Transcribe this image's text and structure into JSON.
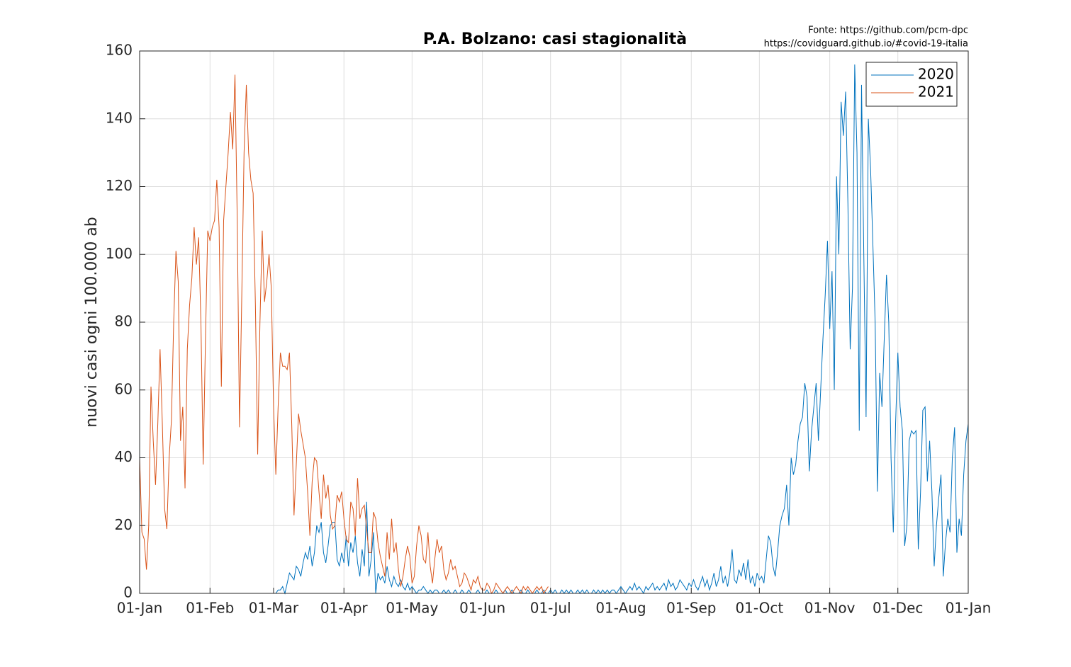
{
  "chart_data": {
    "type": "line",
    "title": "P.A. Bolzano: casi stagionalità",
    "sources": [
      "Fonte: https://github.com/pcm-dpc",
      "https://covidguard.github.io/#covid-19-italia"
    ],
    "ylabel": "nuovi casi ogni 100.000 ab",
    "xlim": [
      0,
      365
    ],
    "ylim": [
      0,
      160
    ],
    "xticks": [
      {
        "value": 0,
        "label": "01-Jan"
      },
      {
        "value": 31,
        "label": "01-Feb"
      },
      {
        "value": 59,
        "label": "01-Mar"
      },
      {
        "value": 90,
        "label": "01-Apr"
      },
      {
        "value": 120,
        "label": "01-May"
      },
      {
        "value": 151,
        "label": "01-Jun"
      },
      {
        "value": 181,
        "label": "01-Jul"
      },
      {
        "value": 212,
        "label": "01-Aug"
      },
      {
        "value": 243,
        "label": "01-Sep"
      },
      {
        "value": 273,
        "label": "01-Oct"
      },
      {
        "value": 304,
        "label": "01-Nov"
      },
      {
        "value": 334,
        "label": "01-Dec"
      },
      {
        "value": 365,
        "label": "01-Jan"
      }
    ],
    "yticks": [
      0,
      20,
      40,
      60,
      80,
      100,
      120,
      140,
      160
    ],
    "grid": true,
    "legend": "top-right",
    "series": [
      {
        "name": "2020",
        "color": "#0072BD",
        "x": [
          55,
          56,
          57,
          58,
          59,
          60,
          61,
          62,
          63,
          64,
          65,
          66,
          67,
          68,
          69,
          70,
          71,
          72,
          73,
          74,
          75,
          76,
          77,
          78,
          79,
          80,
          81,
          82,
          83,
          84,
          85,
          86,
          87,
          88,
          89,
          90,
          91,
          92,
          93,
          94,
          95,
          96,
          97,
          98,
          99,
          100,
          101,
          102,
          103,
          104,
          105,
          106,
          107,
          108,
          109,
          110,
          111,
          112,
          113,
          114,
          115,
          116,
          117,
          118,
          119,
          120,
          121,
          122,
          123,
          124,
          125,
          126,
          127,
          128,
          129,
          130,
          131,
          132,
          133,
          134,
          135,
          136,
          137,
          138,
          139,
          140,
          141,
          142,
          143,
          144,
          145,
          146,
          147,
          148,
          149,
          150,
          151,
          152,
          153,
          154,
          155,
          156,
          157,
          158,
          159,
          160,
          161,
          162,
          163,
          164,
          165,
          166,
          167,
          168,
          169,
          170,
          171,
          172,
          173,
          174,
          175,
          176,
          177,
          178,
          179,
          180,
          181,
          182,
          183,
          184,
          185,
          186,
          187,
          188,
          189,
          190,
          191,
          192,
          193,
          194,
          195,
          196,
          197,
          198,
          199,
          200,
          201,
          202,
          203,
          204,
          205,
          206,
          207,
          208,
          209,
          210,
          211,
          212,
          213,
          214,
          215,
          216,
          217,
          218,
          219,
          220,
          221,
          222,
          223,
          224,
          225,
          226,
          227,
          228,
          229,
          230,
          231,
          232,
          233,
          234,
          235,
          236,
          237,
          238,
          239,
          240,
          241,
          242,
          243,
          244,
          245,
          246,
          247,
          248,
          249,
          250,
          251,
          252,
          253,
          254,
          255,
          256,
          257,
          258,
          259,
          260,
          261,
          262,
          263,
          264,
          265,
          266,
          267,
          268,
          269,
          270,
          271,
          272,
          273,
          274,
          275,
          276,
          277,
          278,
          279,
          280,
          281,
          282,
          283,
          284,
          285,
          286,
          287,
          288,
          289,
          290,
          291,
          292,
          293,
          294,
          295,
          296,
          297,
          298,
          299,
          300,
          301,
          302,
          303,
          304,
          305,
          306,
          307,
          308,
          309,
          310,
          311,
          312,
          313,
          314,
          315,
          316,
          317,
          318,
          319,
          320,
          321,
          322,
          323,
          324,
          325,
          326,
          327,
          328,
          329,
          330,
          331,
          332,
          333,
          334,
          335,
          336,
          337,
          338,
          339,
          340,
          341,
          342,
          343,
          344,
          345,
          346,
          347,
          348,
          349,
          350,
          351,
          352,
          353,
          354,
          355,
          356,
          357,
          358,
          359,
          360,
          361,
          362,
          363,
          364,
          365
        ],
        "values": [
          0,
          0,
          0,
          0,
          0,
          0,
          1,
          1,
          2,
          0,
          3,
          6,
          5,
          4,
          8,
          7,
          5,
          9,
          12,
          10,
          14,
          8,
          12,
          20,
          18,
          21,
          12,
          9,
          14,
          20,
          21,
          21,
          10,
          8,
          12,
          9,
          17,
          8,
          15,
          12,
          17,
          9,
          5,
          13,
          8,
          27,
          5,
          10,
          18,
          0,
          6,
          4,
          5,
          3,
          8,
          4,
          2,
          5,
          3,
          2,
          4,
          2,
          1,
          3,
          1,
          2,
          1,
          0,
          1,
          1,
          2,
          1,
          0,
          1,
          0,
          1,
          1,
          0,
          0,
          1,
          0,
          1,
          0,
          0,
          1,
          0,
          0,
          1,
          0,
          0,
          1,
          0,
          0,
          0,
          1,
          0,
          0,
          0,
          1,
          0,
          0,
          0,
          1,
          0,
          0,
          0,
          1,
          0,
          0,
          1,
          0,
          0,
          0,
          1,
          0,
          0,
          1,
          0,
          0,
          0,
          1,
          0,
          0,
          1,
          0,
          0,
          1,
          0,
          1,
          0,
          0,
          1,
          0,
          1,
          0,
          1,
          0,
          0,
          1,
          0,
          1,
          0,
          1,
          0,
          0,
          1,
          0,
          1,
          0,
          1,
          0,
          1,
          0,
          1,
          1,
          0,
          1,
          2,
          1,
          0,
          1,
          2,
          1,
          3,
          1,
          2,
          1,
          0,
          2,
          1,
          2,
          3,
          1,
          2,
          1,
          2,
          3,
          1,
          4,
          2,
          3,
          1,
          2,
          4,
          3,
          2,
          1,
          3,
          2,
          4,
          2,
          1,
          3,
          5,
          2,
          4,
          1,
          3,
          6,
          2,
          4,
          8,
          3,
          5,
          2,
          6,
          13,
          4,
          3,
          7,
          5,
          9,
          4,
          10,
          3,
          5,
          2,
          6,
          4,
          5,
          3,
          10,
          17,
          15,
          8,
          5,
          12,
          20,
          23,
          25,
          32,
          20,
          40,
          35,
          38,
          45,
          50,
          52,
          62,
          58,
          36,
          48,
          55,
          62,
          45,
          60,
          75,
          88,
          104,
          78,
          95,
          60,
          123,
          100,
          145,
          135,
          148,
          115,
          72,
          90,
          156,
          130,
          48,
          150,
          100,
          52,
          140,
          125,
          103,
          80,
          30,
          65,
          55,
          75,
          94,
          80,
          40,
          18,
          50,
          71,
          55,
          48,
          14,
          20,
          45,
          48,
          47,
          48,
          13,
          30,
          54,
          55,
          33,
          45,
          30,
          8,
          20,
          28,
          35,
          5,
          15,
          22,
          18,
          40,
          49,
          12,
          22,
          17,
          35,
          45,
          50
        ]
      },
      {
        "name": "2021",
        "color": "#D95319",
        "x": [
          0,
          1,
          2,
          3,
          4,
          5,
          6,
          7,
          8,
          9,
          10,
          11,
          12,
          13,
          14,
          15,
          16,
          17,
          18,
          19,
          20,
          21,
          22,
          23,
          24,
          25,
          26,
          27,
          28,
          29,
          30,
          31,
          32,
          33,
          34,
          35,
          36,
          37,
          38,
          39,
          40,
          41,
          42,
          43,
          44,
          45,
          46,
          47,
          48,
          49,
          50,
          51,
          52,
          53,
          54,
          55,
          56,
          57,
          58,
          59,
          60,
          61,
          62,
          63,
          64,
          65,
          66,
          67,
          68,
          69,
          70,
          71,
          72,
          73,
          74,
          75,
          76,
          77,
          78,
          79,
          80,
          81,
          82,
          83,
          84,
          85,
          86,
          87,
          88,
          89,
          90,
          91,
          92,
          93,
          94,
          95,
          96,
          97,
          98,
          99,
          100,
          101,
          102,
          103,
          104,
          105,
          106,
          107,
          108,
          109,
          110,
          111,
          112,
          113,
          114,
          115,
          116,
          117,
          118,
          119,
          120,
          121,
          122,
          123,
          124,
          125,
          126,
          127,
          128,
          129,
          130,
          131,
          132,
          133,
          134,
          135,
          136,
          137,
          138,
          139,
          140,
          141,
          142,
          143,
          144,
          145,
          146,
          147,
          148,
          149,
          150,
          151,
          152,
          153,
          154,
          155,
          156,
          157,
          158,
          159,
          160,
          161,
          162,
          163,
          164,
          165,
          166,
          167,
          168,
          169,
          170,
          171,
          172,
          173,
          174,
          175,
          176,
          177,
          178,
          179,
          180
        ],
        "values": [
          40,
          18,
          16,
          7,
          20,
          61,
          45,
          32,
          50,
          72,
          50,
          25,
          19,
          40,
          51,
          80,
          101,
          92,
          45,
          55,
          31,
          72,
          85,
          93,
          108,
          97,
          105,
          80,
          38,
          75,
          107,
          104,
          108,
          110,
          122,
          108,
          61,
          110,
          120,
          130,
          142,
          131,
          153,
          110,
          49,
          88,
          130,
          150,
          130,
          122,
          118,
          85,
          41,
          80,
          107,
          86,
          92,
          100,
          90,
          55,
          35,
          55,
          71,
          67,
          67,
          66,
          71,
          50,
          23,
          38,
          53,
          48,
          44,
          40,
          30,
          17,
          33,
          40,
          39,
          30,
          22,
          35,
          28,
          32,
          23,
          19,
          20,
          29,
          27,
          30,
          22,
          16,
          15,
          27,
          25,
          17,
          34,
          22,
          25,
          26,
          19,
          12,
          12,
          24,
          22,
          15,
          11,
          8,
          5,
          18,
          10,
          22,
          12,
          15,
          7,
          2,
          5,
          10,
          14,
          11,
          3,
          5,
          14,
          20,
          17,
          10,
          9,
          18,
          8,
          3,
          10,
          16,
          12,
          14,
          7,
          4,
          6,
          10,
          7,
          8,
          5,
          2,
          3,
          6,
          5,
          3,
          1,
          4,
          3,
          5,
          2,
          1,
          1,
          3,
          2,
          0,
          1,
          3,
          2,
          1,
          0,
          1,
          2,
          1,
          0,
          1,
          2,
          1,
          0,
          2,
          1,
          2,
          1,
          0,
          1,
          2,
          1,
          2,
          0,
          1,
          2
        ]
      }
    ]
  }
}
